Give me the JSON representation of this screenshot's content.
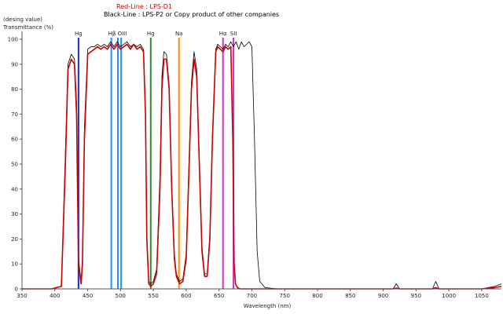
{
  "chart_data": {
    "type": "line",
    "title": "",
    "legend": [
      {
        "label": "Red-Line : LPS-D1",
        "color": "#cc0000"
      },
      {
        "label": "Black-Line : LPS-P2 or Copy product of other companies",
        "color": "#000000"
      }
    ],
    "ylabel_top": "(desing value)",
    "ylabel": "Transmittance (%)",
    "xlabel": "Wavelength (nm)",
    "xlim": [
      350,
      1080
    ],
    "ylim": [
      0,
      100
    ],
    "xticks": [
      350,
      400,
      450,
      500,
      550,
      600,
      650,
      700,
      750,
      800,
      850,
      900,
      950,
      1000,
      1050
    ],
    "yticks": [
      0,
      10,
      20,
      30,
      40,
      50,
      60,
      70,
      80,
      90,
      100
    ],
    "grid": false,
    "emission_lines": [
      {
        "label": "Hg",
        "wavelengths": [
          436
        ],
        "color": "#1a2bd9"
      },
      {
        "label": "Hβ OIII",
        "wavelengths": [
          486,
          496,
          501
        ],
        "color": "#1e90ff"
      },
      {
        "label": "Hg",
        "wavelengths": [
          546
        ],
        "color": "#2e8b2e"
      },
      {
        "label": "Na",
        "wavelengths": [
          589
        ],
        "color": "#ff8c00"
      },
      {
        "label": "Hα",
        "wavelengths": [
          656
        ],
        "color": "#cc33cc"
      },
      {
        "label": "SII",
        "wavelengths": [
          672
        ],
        "color": "#cc33cc"
      }
    ],
    "series": [
      {
        "name": "Red-Line : LPS-D1",
        "color": "#cc0000",
        "x": [
          350,
          395,
          410,
          416,
          420,
          425,
          430,
          433,
          436,
          440,
          442,
          445,
          450,
          455,
          460,
          465,
          470,
          475,
          480,
          485,
          490,
          495,
          500,
          505,
          510,
          515,
          520,
          525,
          530,
          535,
          538,
          540,
          543,
          546,
          550,
          555,
          560,
          563,
          566,
          570,
          574,
          578,
          582,
          585,
          590,
          595,
          600,
          604,
          608,
          612,
          616,
          620,
          624,
          628,
          632,
          636,
          640,
          645,
          648,
          652,
          656,
          660,
          664,
          668,
          671,
          673,
          675,
          678,
          682,
          690,
          700,
          750,
          800,
          850,
          900,
          915,
          920,
          925,
          950,
          975,
          980,
          985,
          1000,
          1050,
          1070,
          1080
        ],
        "y": [
          0,
          0,
          1,
          50,
          88,
          92,
          90,
          70,
          10,
          2,
          10,
          60,
          94,
          95,
          96,
          97,
          96,
          97,
          96,
          98,
          96,
          98,
          96,
          97,
          98,
          96,
          98,
          96,
          97,
          95,
          70,
          20,
          2,
          1,
          2,
          6,
          40,
          80,
          92,
          92,
          80,
          40,
          12,
          5,
          2,
          3,
          12,
          45,
          80,
          92,
          85,
          50,
          15,
          5,
          5,
          20,
          60,
          95,
          97,
          96,
          95,
          97,
          96,
          97,
          60,
          10,
          2,
          0.5,
          0,
          0,
          0,
          0,
          0,
          0,
          0,
          0,
          0.3,
          0,
          0,
          0,
          0.5,
          0,
          0,
          0,
          0.5,
          1
        ]
      },
      {
        "name": "Black-Line : LPS-P2 or Copy product of other companies",
        "color": "#000000",
        "x": [
          350,
          395,
          410,
          416,
          420,
          425,
          430,
          433,
          436,
          440,
          442,
          445,
          450,
          455,
          460,
          465,
          470,
          475,
          480,
          485,
          490,
          495,
          500,
          505,
          510,
          515,
          520,
          525,
          530,
          535,
          538,
          540,
          543,
          546,
          550,
          555,
          560,
          563,
          566,
          570,
          574,
          578,
          582,
          585,
          590,
          595,
          600,
          604,
          608,
          612,
          616,
          620,
          624,
          628,
          632,
          636,
          640,
          645,
          648,
          652,
          656,
          660,
          664,
          668,
          672,
          676,
          680,
          684,
          688,
          692,
          696,
          700,
          704,
          708,
          712,
          720,
          740,
          800,
          850,
          900,
          915,
          920,
          925,
          950,
          975,
          980,
          985,
          1000,
          1050,
          1070,
          1080
        ],
        "y": [
          0,
          0,
          1,
          55,
          90,
          94,
          92,
          75,
          12,
          3,
          12,
          65,
          96,
          97,
          97,
          98,
          97,
          98,
          97,
          99,
          97,
          99,
          97,
          98,
          99,
          97,
          98,
          97,
          98,
          96,
          72,
          22,
          3,
          2,
          3,
          8,
          45,
          85,
          95,
          94,
          82,
          42,
          14,
          6,
          3,
          4,
          14,
          48,
          83,
          95,
          88,
          52,
          17,
          6,
          6,
          22,
          62,
          96,
          98,
          97,
          96,
          98,
          97,
          99,
          97,
          99,
          96,
          99,
          97,
          98,
          99,
          97,
          60,
          15,
          3,
          0.5,
          0,
          0,
          0,
          0,
          0,
          2,
          0,
          0,
          0,
          3,
          0,
          0,
          0,
          1,
          2
        ]
      }
    ]
  }
}
